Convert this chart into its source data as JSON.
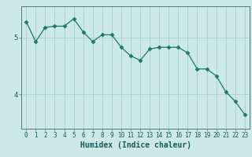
{
  "x": [
    0,
    1,
    2,
    3,
    4,
    5,
    6,
    7,
    8,
    9,
    10,
    11,
    12,
    13,
    14,
    15,
    16,
    17,
    18,
    19,
    20,
    21,
    22,
    23
  ],
  "y": [
    5.28,
    4.93,
    5.18,
    5.2,
    5.2,
    5.33,
    5.1,
    4.93,
    5.05,
    5.05,
    4.83,
    4.68,
    4.6,
    4.8,
    4.83,
    4.83,
    4.83,
    4.73,
    4.45,
    4.45,
    4.33,
    4.05,
    3.88,
    3.65
  ],
  "line_color": "#1a7a6a",
  "marker": "D",
  "marker_size": 2.5,
  "bg_color": "#cce8e8",
  "grid_color": "#aacccc",
  "xlabel": "Humidex (Indice chaleur)",
  "ylim": [
    3.4,
    5.55
  ],
  "xlim": [
    -0.5,
    23.5
  ],
  "yticks": [
    4,
    5
  ],
  "xticks": [
    0,
    1,
    2,
    3,
    4,
    5,
    6,
    7,
    8,
    9,
    10,
    11,
    12,
    13,
    14,
    15,
    16,
    17,
    18,
    19,
    20,
    21,
    22,
    23
  ],
  "xlabel_fontsize": 7,
  "xlabel_color": "#1a5a5a",
  "tick_label_color": "#1a5a5a",
  "tick_fontsize": 5.5
}
